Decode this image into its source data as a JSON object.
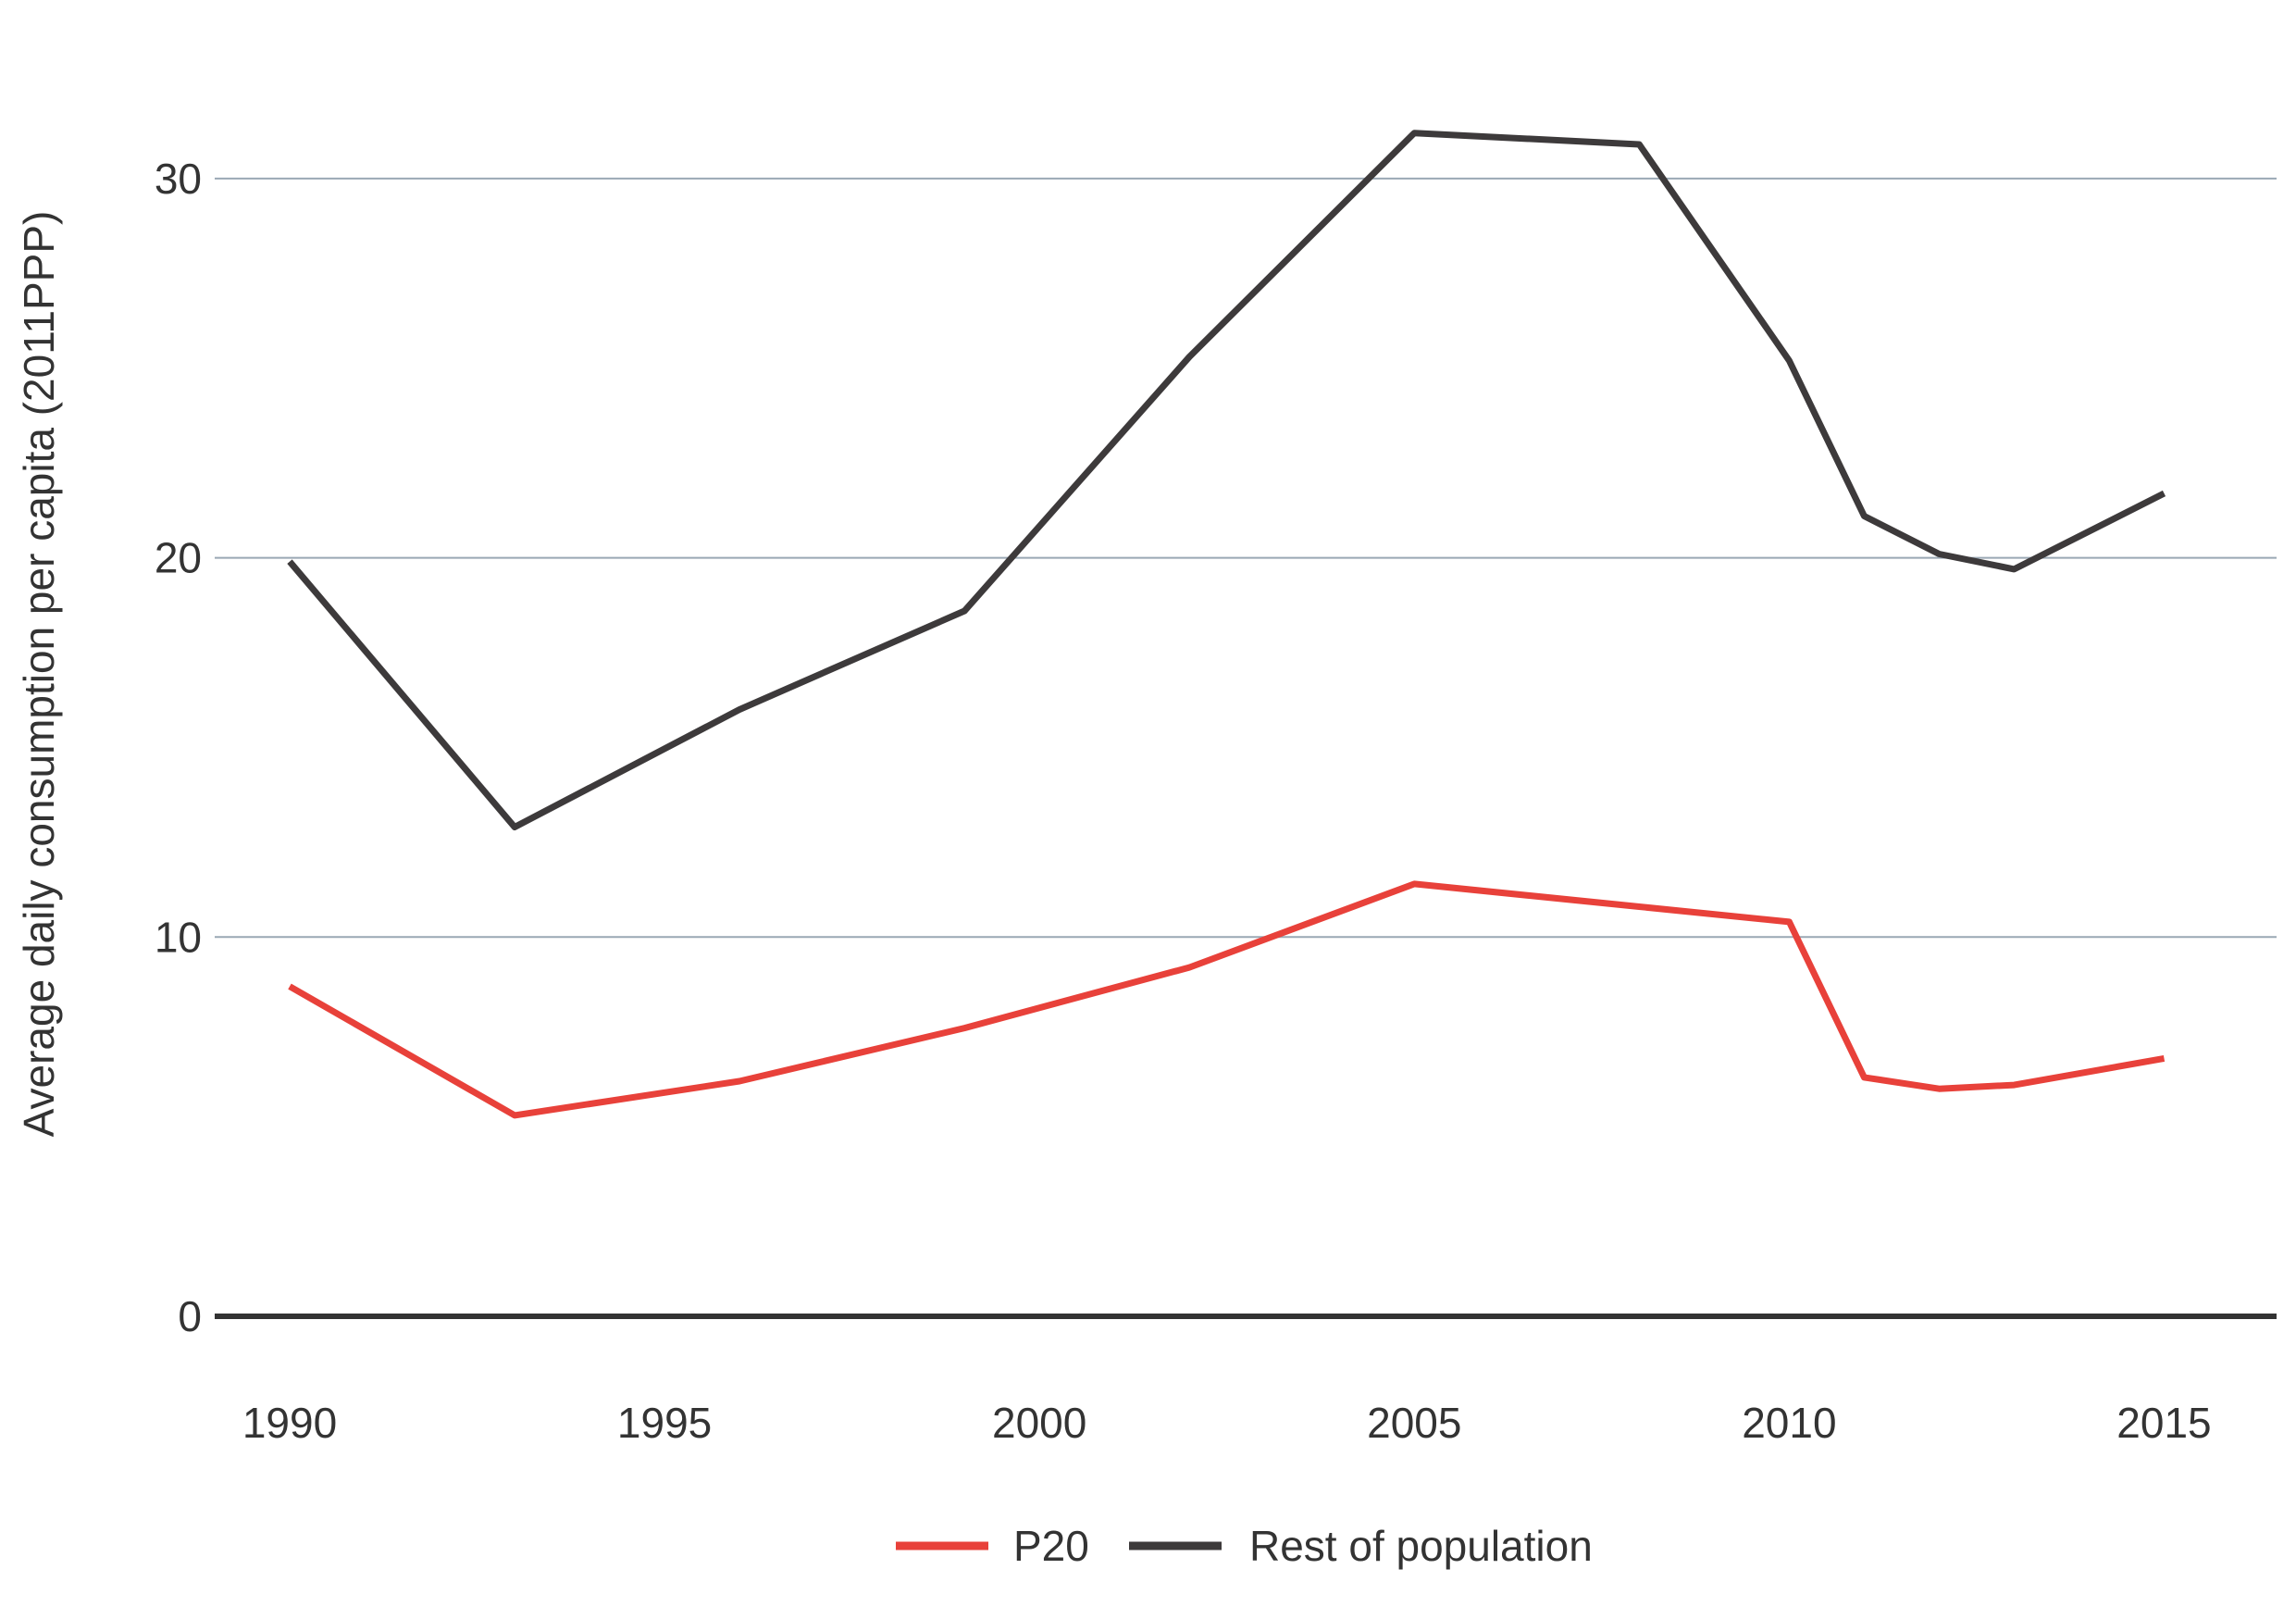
{
  "chart_data": {
    "type": "line",
    "title": "",
    "xlabel": "",
    "ylabel": "Average daily consumption per capita (2011PPP)",
    "xlim": [
      1989,
      2016.5
    ],
    "ylim": [
      0,
      33
    ],
    "x_ticks": [
      1990,
      1995,
      2000,
      2005,
      2010,
      2015
    ],
    "y_ticks": [
      0,
      10,
      20,
      30
    ],
    "grid": "horizontal",
    "legend_position": "bottom-center",
    "colors": {
      "gridline": "#9aa8b4",
      "baseline": "#333333",
      "text": "#333333"
    },
    "series": [
      {
        "name": "P20",
        "color": "#e8413a",
        "points": [
          [
            1990,
            8.7
          ],
          [
            1993,
            5.3
          ],
          [
            1996,
            6.2
          ],
          [
            1999,
            7.6
          ],
          [
            2002,
            9.2
          ],
          [
            2005,
            11.4
          ],
          [
            2008,
            10.8
          ],
          [
            2010,
            10.4
          ],
          [
            2011,
            6.3
          ],
          [
            2012,
            6.0
          ],
          [
            2013,
            6.1
          ],
          [
            2015,
            6.8
          ]
        ]
      },
      {
        "name": "Rest of population",
        "color": "#3d3a3b",
        "points": [
          [
            1990,
            19.9
          ],
          [
            1993,
            12.9
          ],
          [
            1996,
            16.0
          ],
          [
            1999,
            18.6
          ],
          [
            2002,
            25.3
          ],
          [
            2005,
            31.2
          ],
          [
            2008,
            30.9
          ],
          [
            2010,
            25.2
          ],
          [
            2011,
            21.1
          ],
          [
            2012,
            20.1
          ],
          [
            2013,
            19.7
          ],
          [
            2015,
            21.7
          ]
        ]
      }
    ]
  }
}
